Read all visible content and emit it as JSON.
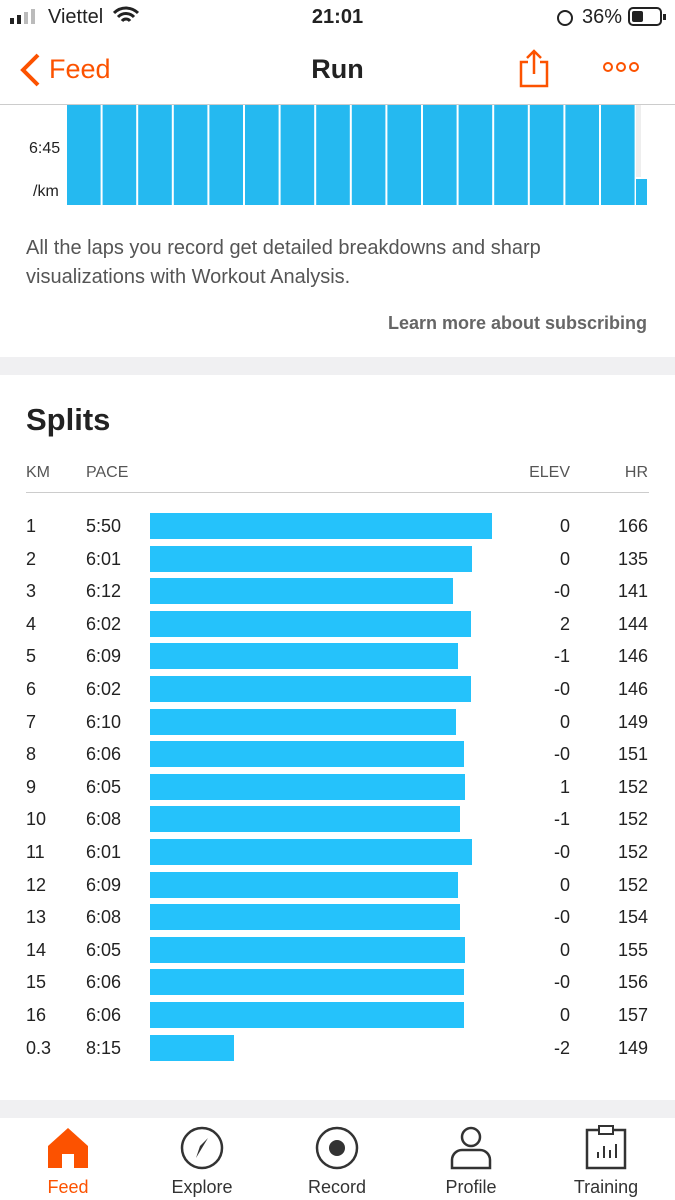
{
  "status_bar": {
    "carrier": "Viettel",
    "time": "21:01",
    "battery": "36%"
  },
  "nav": {
    "back": "Feed",
    "title": "Run"
  },
  "laps": {
    "y_label": "6:45",
    "unit": "/km",
    "description": "All the laps you record get detailed breakdowns and sharp visualizations with Workout Analysis.",
    "link": "Learn more about subscribing"
  },
  "splits": {
    "title": "Splits",
    "columns": [
      "KM",
      "PACE",
      "ELEV",
      "HR"
    ],
    "rows": [
      [
        "1",
        "5:50",
        "0",
        "166"
      ],
      [
        "2",
        "6:01",
        "0",
        "135"
      ],
      [
        "3",
        "6:12",
        "-0",
        "141"
      ],
      [
        "4",
        "6:02",
        "2",
        "144"
      ],
      [
        "5",
        "6:09",
        "-1",
        "146"
      ],
      [
        "6",
        "6:02",
        "-0",
        "146"
      ],
      [
        "7",
        "6:10",
        "0",
        "149"
      ],
      [
        "8",
        "6:06",
        "-0",
        "151"
      ],
      [
        "9",
        "6:05",
        "1",
        "152"
      ],
      [
        "10",
        "6:08",
        "-1",
        "152"
      ],
      [
        "11",
        "6:01",
        "-0",
        "152"
      ],
      [
        "12",
        "6:09",
        "0",
        "152"
      ],
      [
        "13",
        "6:08",
        "-0",
        "154"
      ],
      [
        "14",
        "6:05",
        "0",
        "155"
      ],
      [
        "15",
        "6:06",
        "-0",
        "156"
      ],
      [
        "16",
        "6:06",
        "0",
        "157"
      ],
      [
        "0.3",
        "8:15",
        "-2",
        "149"
      ]
    ]
  },
  "tab_bar": {
    "tabs": [
      "Feed",
      "Explore",
      "Record",
      "Profile",
      "Training"
    ]
  }
}
